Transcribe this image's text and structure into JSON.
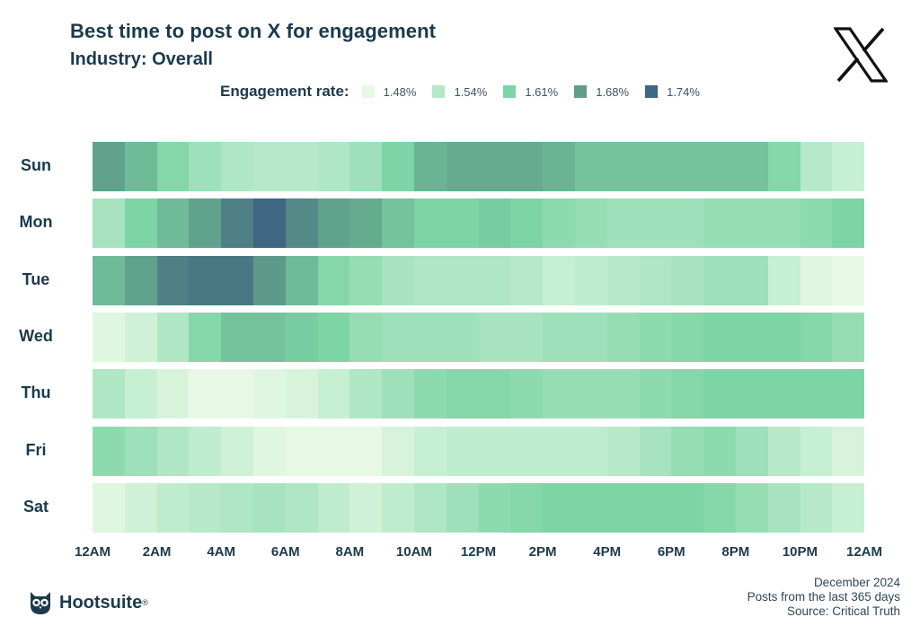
{
  "header": {
    "title": "Best time to post on X for engagement",
    "subtitle": "Industry: Overall"
  },
  "logo": {
    "icon": "x-logo-icon"
  },
  "legend": {
    "title": "Engagement rate:",
    "items": [
      {
        "label": "1.48%",
        "color": "#e7f9e5"
      },
      {
        "label": "1.54%",
        "color": "#b3e8c6"
      },
      {
        "label": "1.61%",
        "color": "#7dd4a5"
      },
      {
        "label": "1.68%",
        "color": "#5f9e8a"
      },
      {
        "label": "1.74%",
        "color": "#3f6782"
      }
    ]
  },
  "footer": {
    "brand": "Hootsuite",
    "brand_mark": "®",
    "owl_icon": "hootsuite-owl-icon",
    "date": "December 2024",
    "period": "Posts from the last 365 days",
    "source": "Source: Critical Truth"
  },
  "chart_data": {
    "type": "heatmap",
    "title": "Best time to post on X for engagement",
    "subtitle": "Industry: Overall",
    "legend_title": "Engagement rate:",
    "legend_values": [
      "1.48%",
      "1.54%",
      "1.61%",
      "1.68%",
      "1.74%"
    ],
    "legend_placement": "top",
    "scale_min": 1.48,
    "scale_max": 1.74,
    "x_tick_labels": [
      "12AM",
      "2AM",
      "4AM",
      "6AM",
      "8AM",
      "10AM",
      "12PM",
      "2PM",
      "4PM",
      "6PM",
      "8PM",
      "10PM",
      "12AM"
    ],
    "rows": [
      "Sun",
      "Mon",
      "Tue",
      "Wed",
      "Thu",
      "Fri",
      "Sat"
    ],
    "values": [
      [
        1.67,
        1.64,
        1.6,
        1.57,
        1.55,
        1.54,
        1.54,
        1.55,
        1.57,
        1.61,
        1.65,
        1.66,
        1.66,
        1.66,
        1.65,
        1.63,
        1.63,
        1.63,
        1.63,
        1.63,
        1.63,
        1.6,
        1.54,
        1.52
      ],
      [
        1.56,
        1.61,
        1.64,
        1.67,
        1.71,
        1.74,
        1.7,
        1.67,
        1.66,
        1.63,
        1.61,
        1.61,
        1.62,
        1.61,
        1.59,
        1.58,
        1.57,
        1.57,
        1.57,
        1.58,
        1.58,
        1.58,
        1.59,
        1.61
      ],
      [
        1.64,
        1.67,
        1.71,
        1.72,
        1.72,
        1.68,
        1.64,
        1.6,
        1.58,
        1.56,
        1.55,
        1.55,
        1.55,
        1.54,
        1.52,
        1.53,
        1.54,
        1.55,
        1.56,
        1.57,
        1.57,
        1.52,
        1.49,
        1.48
      ],
      [
        1.49,
        1.51,
        1.55,
        1.6,
        1.63,
        1.63,
        1.62,
        1.61,
        1.58,
        1.57,
        1.57,
        1.57,
        1.56,
        1.56,
        1.57,
        1.57,
        1.58,
        1.59,
        1.6,
        1.61,
        1.61,
        1.61,
        1.6,
        1.58
      ],
      [
        1.55,
        1.52,
        1.5,
        1.48,
        1.48,
        1.49,
        1.5,
        1.52,
        1.55,
        1.57,
        1.59,
        1.6,
        1.6,
        1.59,
        1.58,
        1.58,
        1.58,
        1.59,
        1.6,
        1.61,
        1.61,
        1.61,
        1.61,
        1.61
      ],
      [
        1.59,
        1.57,
        1.55,
        1.53,
        1.51,
        1.49,
        1.48,
        1.48,
        1.48,
        1.5,
        1.52,
        1.53,
        1.53,
        1.53,
        1.53,
        1.53,
        1.54,
        1.56,
        1.58,
        1.59,
        1.57,
        1.54,
        1.52,
        1.5
      ],
      [
        1.49,
        1.51,
        1.53,
        1.54,
        1.55,
        1.56,
        1.55,
        1.53,
        1.51,
        1.53,
        1.55,
        1.57,
        1.59,
        1.6,
        1.61,
        1.61,
        1.61,
        1.61,
        1.61,
        1.6,
        1.58,
        1.56,
        1.54,
        1.52
      ]
    ]
  }
}
